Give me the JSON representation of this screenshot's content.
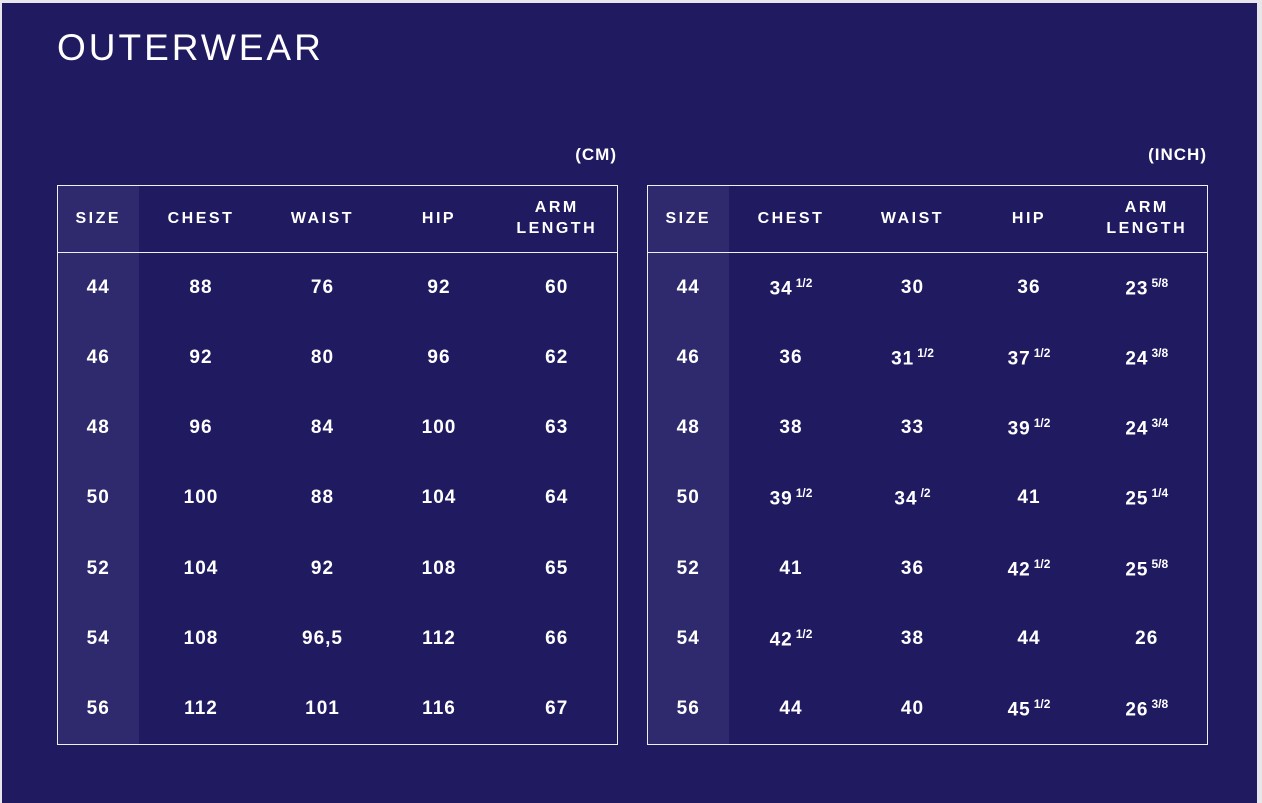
{
  "page": {
    "title": "OUTERWEAR",
    "background_color": "#201a61",
    "size_column_color": "#2e2a6d",
    "border_color": "#efeff6",
    "text_color": "#ffffff",
    "edge_color": "#e7e6ec"
  },
  "tables": {
    "cm": {
      "unit_label": "(CM)",
      "headers": {
        "size": "SIZE",
        "chest": "CHEST",
        "waist": "WAIST",
        "hip": "HIP",
        "arm": "ARM LENGTH"
      },
      "rows": [
        {
          "size": "44",
          "chest": "88",
          "waist": "76",
          "hip": "92",
          "arm": "60"
        },
        {
          "size": "46",
          "chest": "92",
          "waist": "80",
          "hip": "96",
          "arm": "62"
        },
        {
          "size": "48",
          "chest": "96",
          "waist": "84",
          "hip": "100",
          "arm": "63"
        },
        {
          "size": "50",
          "chest": "100",
          "waist": "88",
          "hip": "104",
          "arm": "64"
        },
        {
          "size": "52",
          "chest": "104",
          "waist": "92",
          "hip": "108",
          "arm": "65"
        },
        {
          "size": "54",
          "chest": "108",
          "waist": "96,5",
          "hip": "112",
          "arm": "66"
        },
        {
          "size": "56",
          "chest": "112",
          "waist": "101",
          "hip": "116",
          "arm": "67"
        }
      ]
    },
    "inch": {
      "unit_label": "(INCH)",
      "headers": {
        "size": "SIZE",
        "chest": "CHEST",
        "waist": "WAIST",
        "hip": "HIP",
        "arm": "ARM LENGTH"
      },
      "rows": [
        {
          "size": "44",
          "chest": "34 1/2",
          "waist": "30",
          "hip": "36",
          "arm": "23 5/8"
        },
        {
          "size": "46",
          "chest": "36",
          "waist": "31 1/2",
          "hip": "37 1/2",
          "arm": "24 3/8"
        },
        {
          "size": "48",
          "chest": "38",
          "waist": "33",
          "hip": "39 1/2",
          "arm": "24 3/4"
        },
        {
          "size": "50",
          "chest": "39 1/2",
          "waist": "34 /2",
          "hip": "41",
          "arm": "25 1/4"
        },
        {
          "size": "52",
          "chest": "41",
          "waist": "36",
          "hip": "42 1/2",
          "arm": "25 5/8"
        },
        {
          "size": "54",
          "chest": "42 1/2",
          "waist": "38",
          "hip": "44",
          "arm": "26"
        },
        {
          "size": "56",
          "chest": "44",
          "waist": "40",
          "hip": "45 1/2",
          "arm": "26 3/8"
        }
      ]
    }
  }
}
